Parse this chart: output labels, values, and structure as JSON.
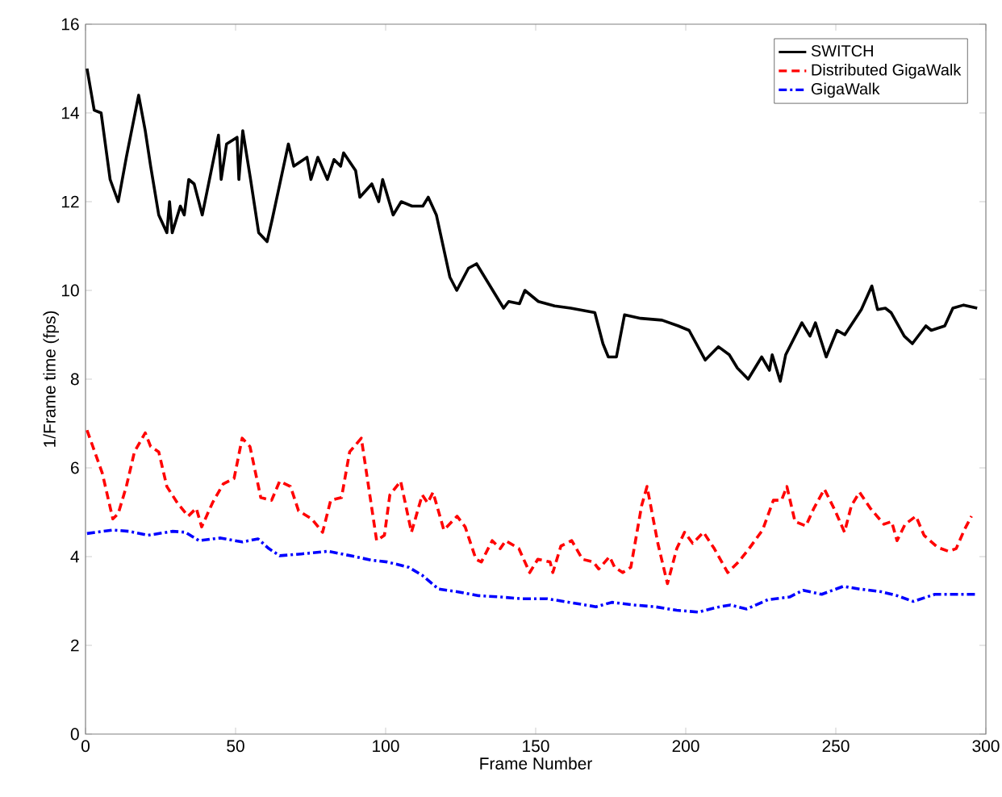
{
  "chart_data": {
    "type": "line",
    "xlabel": "Frame Number",
    "ylabel": "1/Frame time (fps)",
    "xlim": [
      0,
      300
    ],
    "ylim": [
      0,
      16
    ],
    "xticks": [
      0,
      50,
      100,
      150,
      200,
      250,
      300
    ],
    "yticks": [
      0,
      2,
      4,
      6,
      8,
      10,
      12,
      14,
      16
    ],
    "legend": "top right",
    "grid": false,
    "marker": "none",
    "series": [
      {
        "name": "SWITCH",
        "color": "#000000",
        "line_style": "solid",
        "x": [
          0.5,
          2.9,
          5.2,
          8.2,
          10.9,
          13.6,
          17.7,
          19.9,
          21.7,
          24.4,
          27.1,
          28,
          28.9,
          31.6,
          32.9,
          34.4,
          36.2,
          38.9,
          40.7,
          44.3,
          45.2,
          47,
          50.5,
          51.1,
          52.4,
          55,
          57.7,
          60.5,
          62.2,
          67.6,
          69.4,
          73.8,
          75.1,
          77.4,
          80.6,
          82.8,
          85,
          86,
          90,
          91.4,
          95.4,
          97.7,
          99,
          102.5,
          105.2,
          108.8,
          112.4,
          114.2,
          116.9,
          121.4,
          123.7,
          127.6,
          130.3,
          133.9,
          139.3,
          141,
          144.6,
          146.4,
          150.9,
          156.3,
          161.7,
          169.7,
          172.4,
          174.2,
          176.9,
          179.6,
          185,
          192.1,
          197.5,
          201.1,
          206.5,
          210.9,
          214.5,
          217.2,
          220.8,
          225.3,
          227.9,
          228.8,
          231.5,
          233.3,
          238.7,
          241.4,
          243.2,
          246.8,
          250.4,
          253,
          258.5,
          262,
          263.9,
          266.5,
          268.4,
          272.8,
          275.5,
          280,
          281.8,
          286.3,
          289,
          292.6,
          297.1
        ],
        "values": [
          15.0,
          14.06,
          14.0,
          12.5,
          12.0,
          13.0,
          14.4,
          13.6,
          12.8,
          11.7,
          11.3,
          12.0,
          11.3,
          11.9,
          11.7,
          12.5,
          12.4,
          11.7,
          12.3,
          13.5,
          12.5,
          13.3,
          13.45,
          12.5,
          13.6,
          12.5,
          11.3,
          11.1,
          11.6,
          13.3,
          12.8,
          13.0,
          12.5,
          13.0,
          12.5,
          12.95,
          12.8,
          13.1,
          12.7,
          12.1,
          12.4,
          12.0,
          12.5,
          11.7,
          12.0,
          11.9,
          11.9,
          12.1,
          11.7,
          10.3,
          10.0,
          10.5,
          10.6,
          10.2,
          9.6,
          9.75,
          9.7,
          10.0,
          9.75,
          9.65,
          9.6,
          9.5,
          8.8,
          8.5,
          8.5,
          9.45,
          9.37,
          9.33,
          9.2,
          9.1,
          8.43,
          8.73,
          8.55,
          8.25,
          8.0,
          8.5,
          8.2,
          8.55,
          7.95,
          8.55,
          9.27,
          8.97,
          9.27,
          8.5,
          9.1,
          9.0,
          9.57,
          10.1,
          9.57,
          9.6,
          9.5,
          8.97,
          8.8,
          9.2,
          9.1,
          9.2,
          9.6,
          9.67,
          9.6
        ]
      },
      {
        "name": "Distributed GigaWalk",
        "color": "#ff0000",
        "line_style": "dashed",
        "x": [
          0.5,
          5.6,
          9.1,
          10.9,
          13.6,
          16.3,
          19.9,
          21.7,
          24.4,
          27.1,
          30.6,
          34.2,
          36.9,
          38.7,
          42.3,
          45.9,
          49.5,
          52.2,
          54.8,
          58.4,
          62,
          64.7,
          68.3,
          71,
          75.4,
          79,
          81.7,
          85.3,
          88,
          91.9,
          97,
          99.6,
          101.4,
          105,
          108.6,
          112.2,
          114,
          115.8,
          119.4,
          123.8,
          126.5,
          130.1,
          131.9,
          135.5,
          138.2,
          140,
          144.4,
          148,
          150.7,
          154.8,
          155.7,
          158.4,
          162,
          165.6,
          169.2,
          171,
          174.6,
          176.3,
          179,
          181.7,
          185.3,
          187.1,
          190.7,
          193.9,
          197,
          199.6,
          202.3,
          205.9,
          209.5,
          214,
          217.6,
          221.1,
          225.6,
          229.2,
          231.9,
          233.7,
          236.4,
          240,
          242.7,
          246.2,
          249.8,
          252.9,
          255.2,
          257.9,
          261.5,
          266,
          268.6,
          270.4,
          273.1,
          276.7,
          279.4,
          283.9,
          287.5,
          290.1,
          292.8,
          295.2
        ],
        "values": [
          6.85,
          5.88,
          4.85,
          4.97,
          5.58,
          6.36,
          6.79,
          6.48,
          6.36,
          5.58,
          5.21,
          4.91,
          5.09,
          4.67,
          5.21,
          5.64,
          5.76,
          6.67,
          6.48,
          5.33,
          5.27,
          5.7,
          5.58,
          5.03,
          4.85,
          4.55,
          5.27,
          5.33,
          6.36,
          6.67,
          4.36,
          4.48,
          5.39,
          5.7,
          4.55,
          5.39,
          5.21,
          5.45,
          4.6,
          4.91,
          4.67,
          3.94,
          3.88,
          4.36,
          4.18,
          4.36,
          4.18,
          3.64,
          3.94,
          3.88,
          3.64,
          4.24,
          4.36,
          3.94,
          3.88,
          3.72,
          4.0,
          3.76,
          3.64,
          3.76,
          5.15,
          5.58,
          4.3,
          3.39,
          4.18,
          4.55,
          4.3,
          4.55,
          4.18,
          3.64,
          3.88,
          4.18,
          4.6,
          5.27,
          5.27,
          5.58,
          4.79,
          4.69,
          5.09,
          5.52,
          5.03,
          4.55,
          5.15,
          5.45,
          5.09,
          4.73,
          4.79,
          4.36,
          4.73,
          4.91,
          4.48,
          4.21,
          4.12,
          4.18,
          4.6,
          4.91
        ]
      },
      {
        "name": "GigaWalk",
        "color": "#0000ff",
        "line_style": "dashdot",
        "x": [
          0.5,
          9.1,
          14.5,
          20.8,
          28.9,
          33.3,
          37.8,
          45,
          52.2,
          57.5,
          61.1,
          64.7,
          71.9,
          80.8,
          89.8,
          95.2,
          100.5,
          107.7,
          112.2,
          117.6,
          123.8,
          131,
          138.2,
          145.3,
          153.9,
          161.1,
          170.1,
          175.4,
          182.6,
          189.8,
          197,
          204.1,
          211.3,
          214.9,
          220.3,
          227.4,
          234.6,
          239.1,
          245.3,
          252.5,
          257.9,
          265.1,
          270.4,
          275.8,
          283,
          290.1,
          296.4
        ],
        "values": [
          4.52,
          4.6,
          4.57,
          4.48,
          4.57,
          4.55,
          4.36,
          4.42,
          4.33,
          4.4,
          4.18,
          4.02,
          4.06,
          4.12,
          4.0,
          3.92,
          3.88,
          3.76,
          3.58,
          3.27,
          3.21,
          3.12,
          3.09,
          3.05,
          3.05,
          2.97,
          2.87,
          2.97,
          2.91,
          2.87,
          2.79,
          2.75,
          2.87,
          2.91,
          2.82,
          3.03,
          3.09,
          3.24,
          3.15,
          3.33,
          3.27,
          3.21,
          3.12,
          2.99,
          3.15,
          3.15,
          3.15
        ]
      }
    ]
  }
}
